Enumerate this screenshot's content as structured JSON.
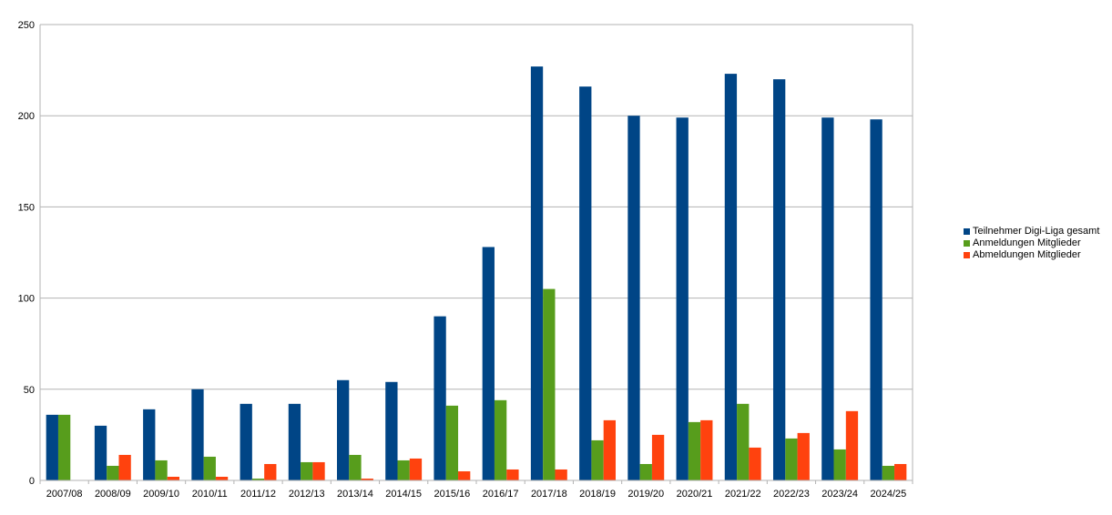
{
  "chart_data": {
    "type": "bar",
    "title": "",
    "xlabel": "",
    "ylabel": "",
    "ylim": [
      0,
      250
    ],
    "yticks": [
      0,
      50,
      100,
      150,
      200,
      250
    ],
    "grid": true,
    "legend_position": "right",
    "categories": [
      "2007/08",
      "2008/09",
      "2009/10",
      "2010/11",
      "2011/12",
      "2012/13",
      "2013/14",
      "2014/15",
      "2015/16",
      "2016/17",
      "2017/18",
      "2018/19",
      "2019/20",
      "2020/21",
      "2021/22",
      "2022/23",
      "2023/24",
      "2024/25"
    ],
    "series": [
      {
        "name": "Teilnehmer Digi-Liga gesamt",
        "color": "#004586",
        "values": [
          36,
          30,
          39,
          50,
          42,
          42,
          55,
          54,
          90,
          128,
          227,
          216,
          200,
          199,
          223,
          220,
          199,
          198
        ]
      },
      {
        "name": "Anmeldungen Mitglieder",
        "color": "#579d1c",
        "values": [
          36,
          8,
          11,
          13,
          1,
          10,
          14,
          11,
          41,
          44,
          105,
          22,
          9,
          32,
          42,
          23,
          17,
          8
        ]
      },
      {
        "name": "Abmeldungen Mitglieder",
        "color": "#ff420e",
        "values": [
          0,
          14,
          2,
          2,
          9,
          10,
          1,
          12,
          5,
          6,
          6,
          33,
          25,
          33,
          18,
          26,
          38,
          9
        ]
      }
    ]
  }
}
